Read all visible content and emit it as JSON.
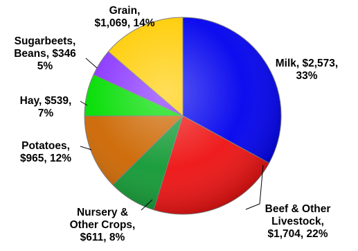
{
  "chart_data": {
    "type": "pie",
    "title": "",
    "slices": [
      {
        "label_lines": [
          "Milk, $2,573,",
          "33%"
        ],
        "category": "Milk",
        "value": 2573,
        "percent": 33,
        "color": "#0000ee"
      },
      {
        "label_lines": [
          "Beef & Other",
          "Livestock,",
          "$1,704, 22%"
        ],
        "category": "Beef & Other Livestock",
        "value": 1704,
        "percent": 22,
        "color": "#ee1111"
      },
      {
        "label_lines": [
          "Nursery &",
          "Other Crops,",
          "$611, 8%"
        ],
        "category": "Nursery & Other Crops",
        "value": 611,
        "percent": 8,
        "color": "#119933"
      },
      {
        "label_lines": [
          "Potatoes,",
          "$965, 12%"
        ],
        "category": "Potatoes",
        "value": 965,
        "percent": 12,
        "color": "#cc6600"
      },
      {
        "label_lines": [
          "Hay, $539,",
          "7%"
        ],
        "category": "Hay",
        "value": 539,
        "percent": 7,
        "color": "#00dd00"
      },
      {
        "label_lines": [
          "Sugarbeets,",
          "Beans, $346",
          "5%"
        ],
        "category": "Sugarbeets, Beans",
        "value": 346,
        "percent": 5,
        "color": "#8833ff"
      },
      {
        "label_lines": [
          "Grain,",
          "$1,069, 14%"
        ],
        "category": "Grain",
        "value": 1069,
        "percent": 14,
        "color": "#ffcc00"
      }
    ],
    "legend": "none",
    "start_angle": "12 o'clock",
    "direction": "clockwise"
  }
}
